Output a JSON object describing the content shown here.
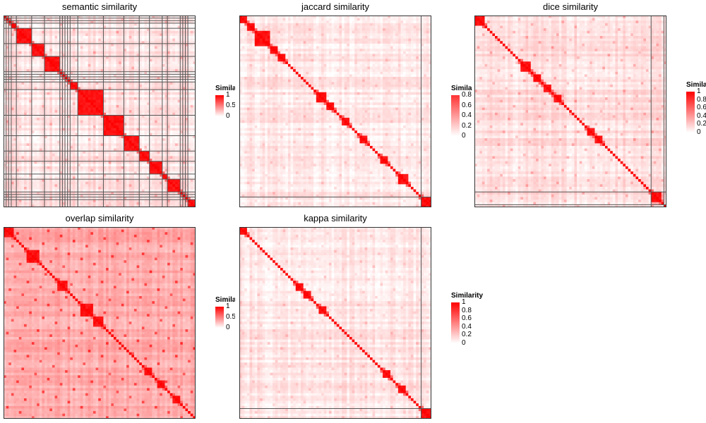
{
  "figure": {
    "scale_colors": {
      "low": "#FFFFFF",
      "high": "#FF0000"
    }
  },
  "chart_data": [
    {
      "type": "heatmap",
      "title": "semantic similarity",
      "n": 75,
      "legend": {
        "title": "Similarity",
        "ticks": [
          "1",
          "0.5",
          "0"
        ],
        "tick_values": [
          1,
          0.5,
          0
        ]
      },
      "clusters": [
        [
          0,
          1
        ],
        [
          1,
          2
        ],
        [
          2,
          3
        ],
        [
          3,
          5
        ],
        [
          5,
          11
        ],
        [
          11,
          16
        ],
        [
          16,
          22
        ],
        [
          22,
          23
        ],
        [
          23,
          24
        ],
        [
          24,
          25
        ],
        [
          25,
          26
        ],
        [
          26,
          29
        ],
        [
          29,
          39
        ],
        [
          39,
          47
        ],
        [
          47,
          53
        ],
        [
          53,
          57
        ],
        [
          57,
          62
        ],
        [
          62,
          64
        ],
        [
          64,
          69
        ],
        [
          69,
          70
        ],
        [
          70,
          71
        ],
        [
          71,
          72
        ],
        [
          72,
          75
        ]
      ],
      "in_cluster_level": 0.55,
      "background_level": 0.08,
      "band_level": 0.18,
      "cluster_lines": true
    },
    {
      "type": "heatmap",
      "title": "jaccard similarity",
      "n": 75,
      "legend": {
        "title": "Similarity",
        "ticks": [
          "0.8",
          "0.6",
          "0.4",
          "0.2",
          "0"
        ],
        "tick_values": [
          0.8,
          0.6,
          0.4,
          0.2,
          0
        ]
      },
      "clusters": [
        [
          0,
          71
        ],
        [
          71,
          75
        ]
      ],
      "blocks": [
        [
          0,
          3
        ],
        [
          3,
          6
        ],
        [
          6,
          12
        ],
        [
          12,
          15
        ],
        [
          15,
          18
        ],
        [
          30,
          34
        ],
        [
          34,
          37
        ],
        [
          40,
          43
        ],
        [
          47,
          50
        ],
        [
          55,
          58
        ],
        [
          62,
          66
        ],
        [
          71,
          75
        ]
      ],
      "in_cluster_level": 0.18,
      "background_level": 0.06,
      "band_level": 0.12,
      "cluster_lines": true
    },
    {
      "type": "heatmap",
      "title": "dice similarity",
      "n": 75,
      "legend": {
        "title": "Similarity",
        "ticks": [
          "1",
          "0.8",
          "0.6",
          "0.4",
          "0.2",
          "0"
        ],
        "tick_values": [
          1,
          0.8,
          0.6,
          0.4,
          0.2,
          0
        ]
      },
      "clusters": [
        [
          0,
          69
        ],
        [
          69,
          74
        ],
        [
          74,
          75
        ]
      ],
      "blocks": [
        [
          0,
          4
        ],
        [
          18,
          22
        ],
        [
          23,
          26
        ],
        [
          27,
          30
        ],
        [
          31,
          34
        ],
        [
          44,
          47
        ],
        [
          47,
          50
        ],
        [
          69,
          73
        ]
      ],
      "in_cluster_level": 0.3,
      "background_level": 0.1,
      "band_level": 0.2,
      "cluster_lines": true
    },
    {
      "type": "heatmap",
      "title": "overlap similarity",
      "n": 75,
      "legend": {
        "title": "Similarity",
        "ticks": [
          "1",
          "0.5",
          "0"
        ],
        "tick_values": [
          1,
          0.5,
          0
        ]
      },
      "clusters": [
        [
          0,
          75
        ]
      ],
      "blocks": [
        [
          0,
          4
        ],
        [
          9,
          14
        ],
        [
          21,
          25
        ],
        [
          30,
          35
        ],
        [
          35,
          39
        ],
        [
          55,
          58
        ],
        [
          60,
          63
        ],
        [
          66,
          69
        ]
      ],
      "in_cluster_level": 0.35,
      "background_level": 0.3,
      "band_level": 0.4,
      "cluster_lines": false
    },
    {
      "type": "heatmap",
      "title": "kappa similarity",
      "n": 75,
      "legend": {
        "title": "Similarity",
        "ticks": [
          "1",
          "0.8",
          "0.6",
          "0.4",
          "0.2",
          "0"
        ],
        "tick_values": [
          1,
          0.8,
          0.6,
          0.4,
          0.2,
          0
        ]
      },
      "clusters": [
        [
          0,
          71
        ],
        [
          71,
          75
        ]
      ],
      "blocks": [
        [
          0,
          3
        ],
        [
          22,
          25
        ],
        [
          25,
          28
        ],
        [
          31,
          34
        ],
        [
          56,
          59
        ],
        [
          62,
          65
        ],
        [
          71,
          75
        ]
      ],
      "in_cluster_level": 0.16,
      "background_level": 0.07,
      "band_level": 0.12,
      "cluster_lines": true
    }
  ]
}
